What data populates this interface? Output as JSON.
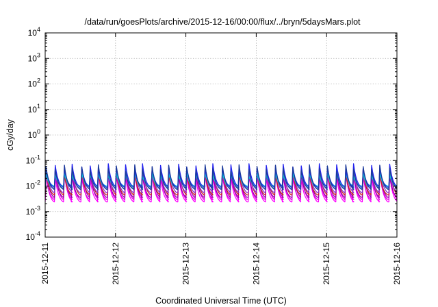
{
  "chart_data": {
    "type": "line",
    "title": "/data/run/goesPlots/archive/2015-12-16/00:00/flux/../bryn/5daysMars.plot",
    "xlabel": "Coordinated Universal Time (UTC)",
    "ylabel": "cGy/day",
    "y_scale": "log",
    "ylim": [
      0.0001,
      10000
    ],
    "xlim": [
      "2015-12-11",
      "2015-12-16"
    ],
    "grid": true,
    "x_ticks": [
      "2015-12-11",
      "2015-12-12",
      "2015-12-13",
      "2015-12-14",
      "2015-12-15",
      "2015-12-16"
    ],
    "y_ticks": [
      {
        "value": 0.0001,
        "base": "10",
        "exp": "-4"
      },
      {
        "value": 0.001,
        "base": "10",
        "exp": "-3"
      },
      {
        "value": 0.01,
        "base": "10",
        "exp": "-2"
      },
      {
        "value": 0.1,
        "base": "10",
        "exp": "-1"
      },
      {
        "value": 1,
        "base": "10",
        "exp": "0"
      },
      {
        "value": 10,
        "base": "10",
        "exp": "1"
      },
      {
        "value": 100,
        "base": "10",
        "exp": "2"
      },
      {
        "value": 1000,
        "base": "10",
        "exp": "3"
      },
      {
        "value": 10000,
        "base": "10",
        "exp": "4"
      }
    ],
    "sawtooth_period_days": 0.125,
    "series": [
      {
        "color": "#ff00ff",
        "peak": 0.032,
        "trough": 0.0024
      },
      {
        "color": "#dd00dd",
        "peak": 0.036,
        "trough": 0.003
      },
      {
        "color": "#9900aa",
        "peak": 0.04,
        "trough": 0.0036
      },
      {
        "color": "#cc2222",
        "peak": 0.046,
        "trough": 0.0045
      },
      {
        "color": "#8833cc",
        "peak": 0.05,
        "trough": 0.0055
      },
      {
        "color": "#33aaaa",
        "peak": 0.04,
        "trough": 0.008
      },
      {
        "color": "#00ccdd",
        "peak": 0.03,
        "trough": 0.01
      },
      {
        "color": "#2222ee",
        "peak": 0.062,
        "trough": 0.009
      },
      {
        "color": "#1a3a9a",
        "peak": 0.056,
        "trough": 0.0075
      }
    ]
  }
}
